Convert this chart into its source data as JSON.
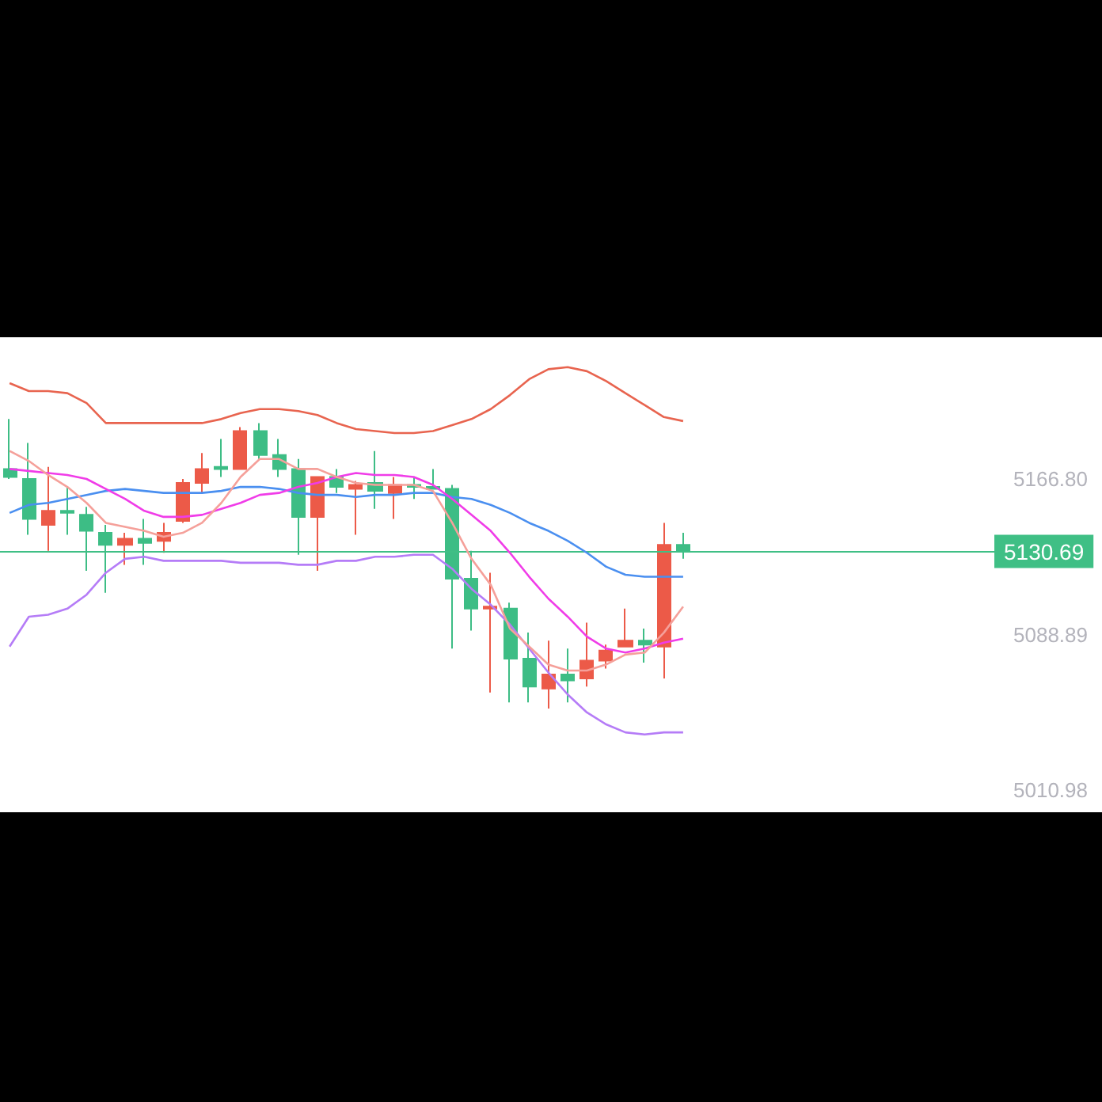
{
  "chart_data": {
    "type": "candlestick",
    "categories": [
      null,
      null,
      null,
      null,
      null,
      null,
      null,
      null,
      null,
      null,
      null,
      null,
      null,
      null,
      null,
      null,
      null,
      null,
      null,
      null,
      null,
      null,
      null,
      null,
      null,
      null,
      null,
      null,
      null,
      null,
      null,
      null,
      null,
      null,
      null,
      null
    ],
    "ohlc": [
      [
        5172,
        5197,
        5167,
        5168
      ],
      [
        5167,
        5185,
        5139,
        5147
      ],
      [
        5144,
        5173,
        5131,
        5151
      ],
      [
        5151,
        5163,
        5139,
        5150
      ],
      [
        5149,
        5153,
        5121,
        5141
      ],
      [
        5140,
        5144,
        5110,
        5134
      ],
      [
        5134,
        5140,
        5124,
        5137
      ],
      [
        5137,
        5147,
        5124,
        5135
      ],
      [
        5136,
        5145,
        5130,
        5140
      ],
      [
        5146,
        5167,
        5145,
        5165
      ],
      [
        5165,
        5180,
        5160,
        5172
      ],
      [
        5173,
        5187,
        5168,
        5172
      ],
      [
        5172,
        5193,
        5172,
        5191
      ],
      [
        5191,
        5195,
        5177,
        5179
      ],
      [
        5179,
        5187,
        5168,
        5172
      ],
      [
        5172,
        5177,
        5129,
        5148
      ],
      [
        5148,
        5168,
        5121,
        5168
      ],
      [
        5168,
        5172,
        5160,
        5163
      ],
      [
        5162,
        5166,
        5139,
        5164
      ],
      [
        5165,
        5181,
        5152,
        5161
      ],
      [
        5160,
        5168,
        5147,
        5164
      ],
      [
        5164,
        5168,
        5157,
        5163
      ],
      [
        5163,
        5172,
        5162,
        5162
      ],
      [
        5162,
        5164,
        5082,
        5117
      ],
      [
        5117,
        5131,
        5091,
        5102
      ],
      [
        5102,
        5120,
        5060,
        5103
      ],
      [
        5102,
        5105,
        5055,
        5077
      ],
      [
        5077,
        5090,
        5055,
        5063
      ],
      [
        5062,
        5086,
        5052,
        5069
      ],
      [
        5069,
        5082,
        5055,
        5066
      ],
      [
        5067,
        5095,
        5063,
        5076
      ],
      [
        5076,
        5084,
        5072,
        5081
      ],
      [
        5083,
        5102,
        5083,
        5086
      ],
      [
        5086,
        5092,
        5075,
        5084
      ],
      [
        5083,
        5145,
        5067,
        5134
      ],
      [
        5134,
        5140,
        5127,
        5130.69
      ]
    ],
    "colors": [
      "#3dbd85",
      "#3dbd85",
      "#ec5a48",
      "#3dbd85",
      "#3dbd85",
      "#3dbd85",
      "#ec5a48",
      "#3dbd85",
      "#ec5a48",
      "#ec5a48",
      "#ec5a48",
      "#3dbd85",
      "#ec5a48",
      "#3dbd85",
      "#3dbd85",
      "#3dbd85",
      "#ec5a48",
      "#3dbd85",
      "#ec5a48",
      "#3dbd85",
      "#ec5a48",
      "#3dbd85",
      "#3dbd85",
      "#3dbd85",
      "#3dbd85",
      "#ec5a48",
      "#3dbd85",
      "#3dbd85",
      "#ec5a48",
      "#3dbd85",
      "#ec5a48",
      "#ec5a48",
      "#ec5a48",
      "#3dbd85",
      "#ec5a48",
      "#3dbd85"
    ],
    "series": [
      {
        "type": "line",
        "color": "#e8644f",
        "values": [
          5215,
          5211,
          5211,
          5210,
          5205,
          5195,
          5195,
          5195,
          5195,
          5195,
          5195,
          5197,
          5200,
          5202,
          5202,
          5201,
          5199,
          5195,
          5192,
          5191,
          5190,
          5190,
          5191,
          5194,
          5197,
          5202,
          5209,
          5217,
          5222,
          5223,
          5221,
          5216,
          5210,
          5204,
          5198,
          5196
        ]
      },
      {
        "type": "line",
        "color": "#b57cf7",
        "values": [
          5083,
          5098,
          5099,
          5102,
          5109,
          5120,
          5127,
          5128,
          5126,
          5126,
          5126,
          5126,
          5125,
          5125,
          5125,
          5124,
          5124,
          5126,
          5126,
          5128,
          5128,
          5129,
          5129,
          5122,
          5112,
          5104,
          5094,
          5082,
          5070,
          5059,
          5050,
          5044,
          5040,
          5039,
          5040,
          5040
        ]
      },
      {
        "type": "line",
        "color": "#4a8ff0",
        "values": [
          5150,
          5154,
          5155,
          5157,
          5159,
          5161,
          5162,
          5161,
          5160,
          5160,
          5160,
          5161,
          5163,
          5163,
          5162,
          5160,
          5159,
          5159,
          5158,
          5159,
          5159,
          5160,
          5160,
          5158,
          5157,
          5154,
          5150,
          5145,
          5141,
          5136,
          5130,
          5123,
          5119,
          5118,
          5118,
          5118
        ]
      },
      {
        "type": "line",
        "color": "#f03ce8",
        "values": [
          5172,
          5171,
          5170,
          5169,
          5167,
          5162,
          5157,
          5151,
          5148,
          5148,
          5149,
          5152,
          5155,
          5159,
          5160,
          5163,
          5165,
          5168,
          5170,
          5169,
          5169,
          5168,
          5164,
          5157,
          5149,
          5141,
          5130,
          5118,
          5107,
          5098,
          5088,
          5082,
          5080,
          5082,
          5085,
          5087
        ]
      },
      {
        "type": "line",
        "color": "#f5a09a",
        "values": [
          5181,
          5176,
          5169,
          5163,
          5155,
          5145,
          5143,
          5141,
          5138,
          5140,
          5145,
          5155,
          5168,
          5177,
          5177,
          5172,
          5172,
          5168,
          5165,
          5164,
          5164,
          5164,
          5161,
          5145,
          5127,
          5114,
          5092,
          5083,
          5074,
          5071,
          5071,
          5074,
          5079,
          5080,
          5090,
          5103
        ]
      }
    ],
    "ylim": [
      5000,
      5238
    ],
    "yticks": [
      {
        "value": 5010.98,
        "label": "5010.98"
      },
      {
        "value": 5088.89,
        "label": "5088.89"
      },
      {
        "value": 5166.8,
        "label": "5166.80"
      }
    ],
    "ref_lines": [
      {
        "axis": "y",
        "value": 5130.69,
        "label": "5130.69",
        "color": "#3fbf85"
      }
    ],
    "tick_labels": "y"
  }
}
